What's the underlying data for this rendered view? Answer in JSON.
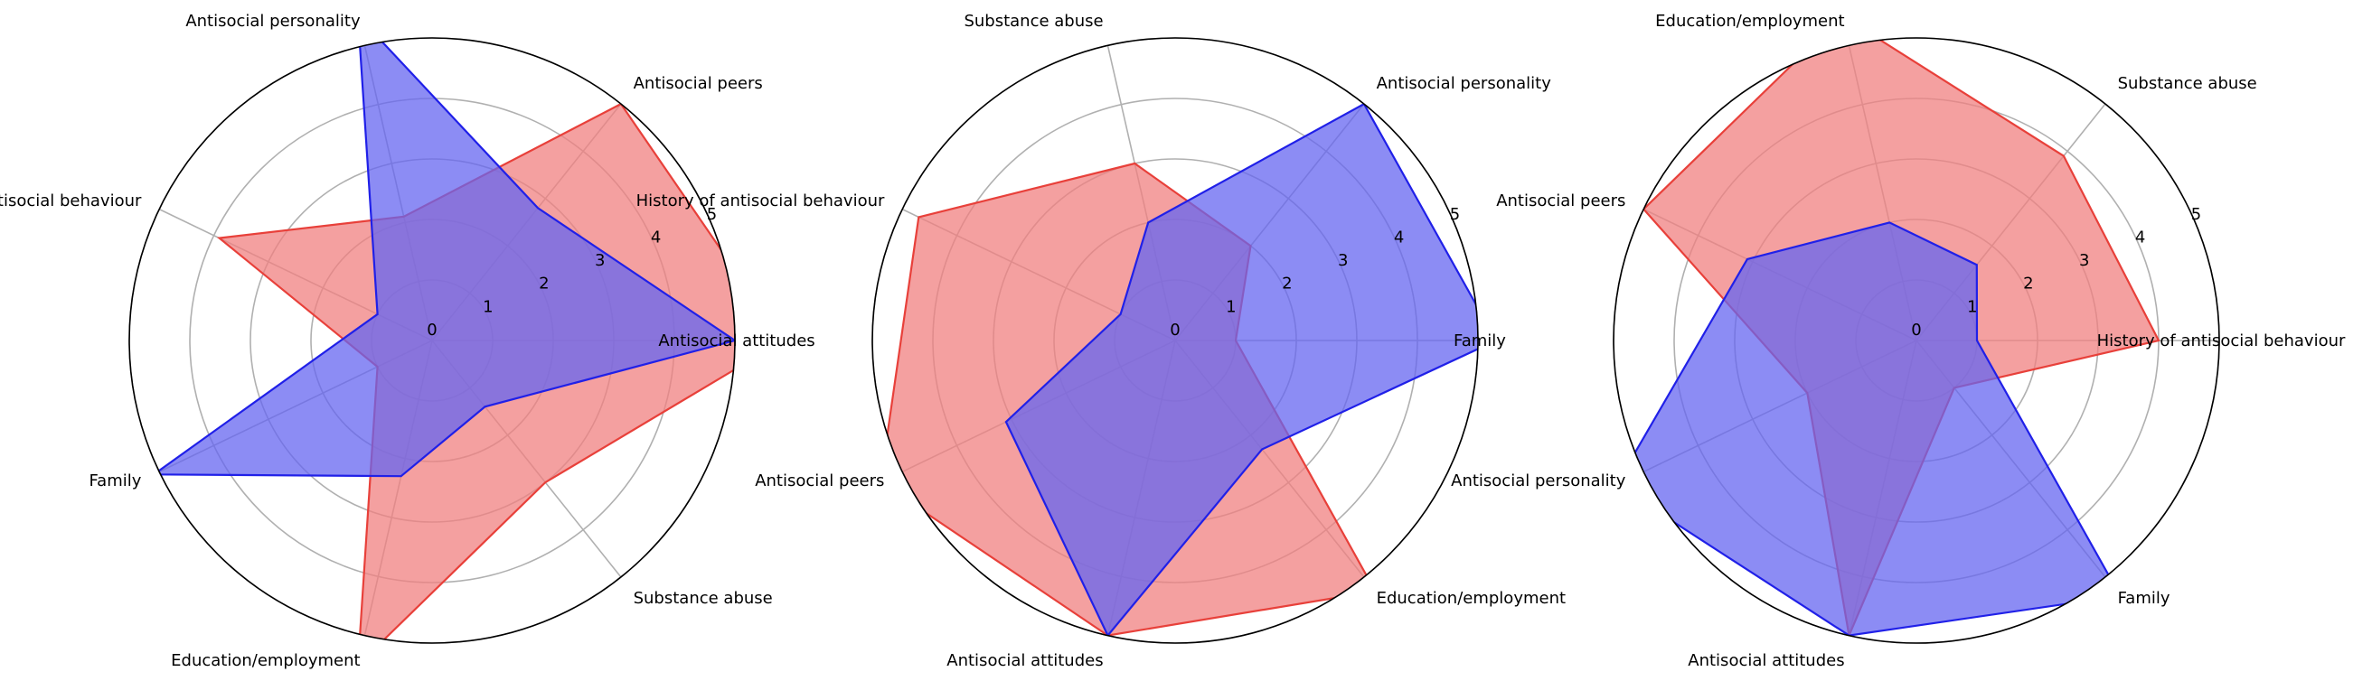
{
  "chart_data": [
    {
      "type": "radar",
      "rlim": [
        0,
        5
      ],
      "rticks": [
        "0",
        "1",
        "2",
        "3",
        "4",
        "5"
      ],
      "grid": true,
      "colors": {
        "red": "#e8403a",
        "blue": "#2020e8",
        "red_fill": "#f08080",
        "blue_fill": "#6666f0"
      },
      "categories": [
        "Antisocial attitudes",
        "Antisocial peers",
        "Antisocial personality",
        "History of antisocial behaviour",
        "Family",
        "Education/employment",
        "Substance abuse"
      ],
      "series": [
        {
          "color": "red",
          "values": [
            5.8,
            5.0,
            2.1,
            3.9,
            1.0,
            5.5,
            3.0
          ]
        },
        {
          "color": "blue",
          "values": [
            5.0,
            2.8,
            5.5,
            1.0,
            5.1,
            2.3,
            1.4
          ]
        }
      ]
    },
    {
      "type": "radar",
      "rlim": [
        0,
        5
      ],
      "rticks": [
        "0",
        "1",
        "2",
        "3",
        "4",
        "5"
      ],
      "grid": true,
      "colors": {
        "red": "#e8403a",
        "blue": "#2020e8",
        "red_fill": "#f08080",
        "blue_fill": "#6666f0"
      },
      "categories": [
        "Family",
        "Antisocial personality",
        "Substance abuse",
        "History of antisocial behaviour",
        "Antisocial peers",
        "Antisocial attitudes",
        "Education/employment"
      ],
      "series": [
        {
          "color": "red",
          "values": [
            1.0,
            2.0,
            3.0,
            4.7,
            5.4,
            5.0,
            5.3
          ]
        },
        {
          "color": "blue",
          "values": [
            5.3,
            5.0,
            2.0,
            1.0,
            3.1,
            5.0,
            2.3
          ]
        }
      ]
    },
    {
      "type": "radar",
      "rlim": [
        0,
        5
      ],
      "rticks": [
        "0",
        "1",
        "2",
        "3",
        "4",
        "5"
      ],
      "grid": true,
      "colors": {
        "red": "#e8403a",
        "blue": "#2020e8",
        "red_fill": "#f08080",
        "blue_fill": "#6666f0"
      },
      "categories": [
        "History of antisocial behaviour",
        "Substance abuse",
        "Education/employment",
        "Antisocial peers",
        "Antisocial personality",
        "Antisocial attitudes",
        "Family"
      ],
      "series": [
        {
          "color": "red",
          "values": [
            4.0,
            3.9,
            5.5,
            5.0,
            2.0,
            5.0,
            1.0
          ]
        },
        {
          "color": "blue",
          "values": [
            1.0,
            1.6,
            2.0,
            3.1,
            5.5,
            5.0,
            5.4
          ]
        }
      ]
    }
  ]
}
